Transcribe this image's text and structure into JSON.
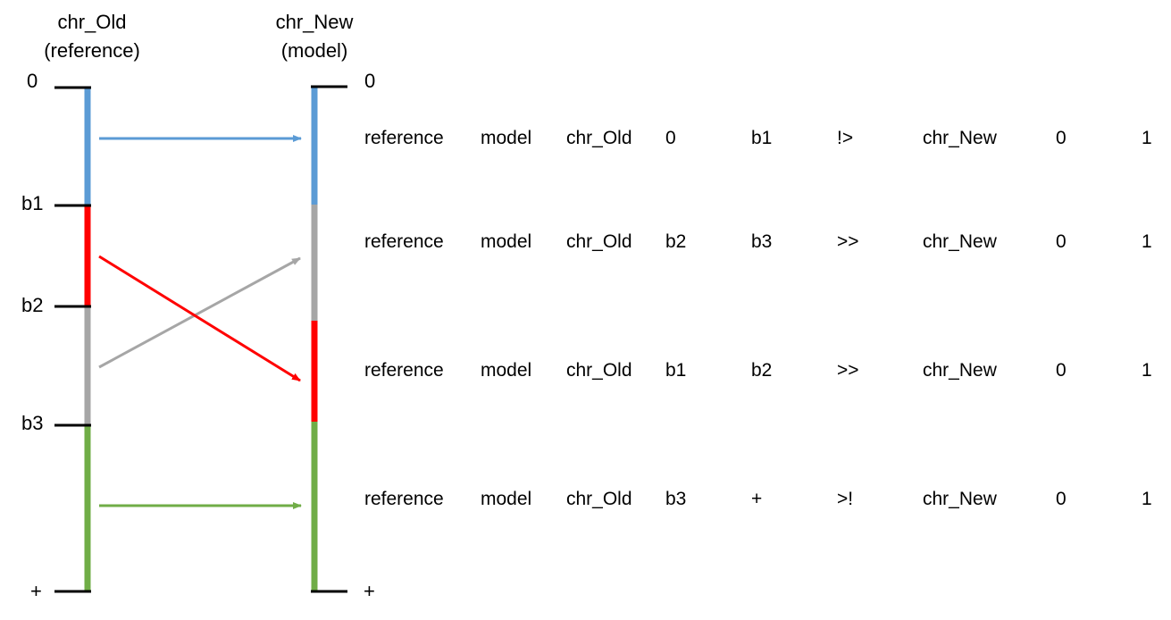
{
  "old_chromosome": {
    "title_line1": "chr_Old",
    "title_line2": "(reference)",
    "labels": [
      "0",
      "b1",
      "b2",
      "b3",
      "+"
    ]
  },
  "new_chromosome": {
    "title_line1": "chr_New",
    "title_line2": "(model)",
    "labels": [
      "0",
      "+"
    ]
  },
  "colors": {
    "segment_a": "#5b9bd5",
    "segment_b": "#ff0000",
    "segment_c": "#a6a6a6",
    "segment_d": "#70ad47"
  },
  "rows": [
    [
      "reference",
      "model",
      "chr_Old",
      "0",
      "b1",
      "!>",
      "chr_New",
      "0",
      "1"
    ],
    [
      "reference",
      "model",
      "chr_Old",
      "b2",
      "b3",
      ">>",
      "chr_New",
      "0",
      "1"
    ],
    [
      "reference",
      "model",
      "chr_Old",
      "b1",
      "b2",
      ">>",
      "chr_New",
      "0",
      "1"
    ],
    [
      "reference",
      "model",
      "chr_Old",
      "b3",
      "+",
      ">!",
      "chr_New",
      "0",
      "1"
    ]
  ]
}
